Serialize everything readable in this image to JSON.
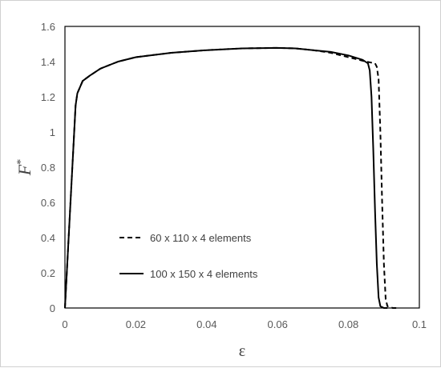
{
  "chart_data": {
    "type": "line",
    "title": "",
    "xlabel": "ε",
    "ylabel_main": "F",
    "ylabel_sup": "*",
    "xlim": [
      0,
      0.1
    ],
    "ylim": [
      0,
      1.6
    ],
    "x_ticks": [
      0,
      0.02,
      0.04,
      0.06,
      0.08,
      0.1
    ],
    "y_ticks": [
      0,
      0.2,
      0.4,
      0.6,
      0.8,
      1.0,
      1.2,
      1.4,
      1.6
    ],
    "x_tick_labels": [
      "0",
      "0.02",
      "0.04",
      "0.06",
      "0.08",
      "0.1"
    ],
    "y_tick_labels": [
      "0",
      "0.2",
      "0.4",
      "0.6",
      "0.8",
      "1",
      "1.2",
      "1.4",
      "1.6"
    ],
    "grid": false,
    "legend_position": "lower-left",
    "series": [
      {
        "name": "60 x 110 x 4 elements",
        "style": "dashed",
        "color": "#000000",
        "points": [
          [
            0,
            0
          ],
          [
            0.003,
            1.15
          ],
          [
            0.0035,
            1.22
          ],
          [
            0.005,
            1.29
          ],
          [
            0.007,
            1.32
          ],
          [
            0.01,
            1.36
          ],
          [
            0.015,
            1.4
          ],
          [
            0.02,
            1.425
          ],
          [
            0.03,
            1.45
          ],
          [
            0.04,
            1.465
          ],
          [
            0.05,
            1.475
          ],
          [
            0.06,
            1.478
          ],
          [
            0.065,
            1.475
          ],
          [
            0.07,
            1.465
          ],
          [
            0.075,
            1.45
          ],
          [
            0.08,
            1.425
          ],
          [
            0.085,
            1.4
          ],
          [
            0.0875,
            1.39
          ],
          [
            0.088,
            1.37
          ],
          [
            0.0885,
            1.3
          ],
          [
            0.089,
            1.0
          ],
          [
            0.0895,
            0.6
          ],
          [
            0.09,
            0.25
          ],
          [
            0.0905,
            0.05
          ],
          [
            0.091,
            0.01
          ],
          [
            0.0925,
            0.0
          ],
          [
            0.094,
            0.0
          ]
        ]
      },
      {
        "name": "100 x 150 x 4 elements",
        "style": "solid",
        "color": "#000000",
        "points": [
          [
            0,
            0
          ],
          [
            0.003,
            1.15
          ],
          [
            0.0035,
            1.22
          ],
          [
            0.005,
            1.29
          ],
          [
            0.007,
            1.32
          ],
          [
            0.01,
            1.36
          ],
          [
            0.015,
            1.4
          ],
          [
            0.02,
            1.425
          ],
          [
            0.03,
            1.45
          ],
          [
            0.04,
            1.465
          ],
          [
            0.05,
            1.475
          ],
          [
            0.06,
            1.478
          ],
          [
            0.065,
            1.475
          ],
          [
            0.07,
            1.465
          ],
          [
            0.075,
            1.455
          ],
          [
            0.08,
            1.435
          ],
          [
            0.084,
            1.41
          ],
          [
            0.0855,
            1.39
          ],
          [
            0.086,
            1.35
          ],
          [
            0.0865,
            1.2
          ],
          [
            0.087,
            0.9
          ],
          [
            0.0875,
            0.55
          ],
          [
            0.088,
            0.25
          ],
          [
            0.0885,
            0.06
          ],
          [
            0.089,
            0.01
          ],
          [
            0.09,
            0.0
          ],
          [
            0.091,
            0.0
          ]
        ]
      }
    ]
  }
}
